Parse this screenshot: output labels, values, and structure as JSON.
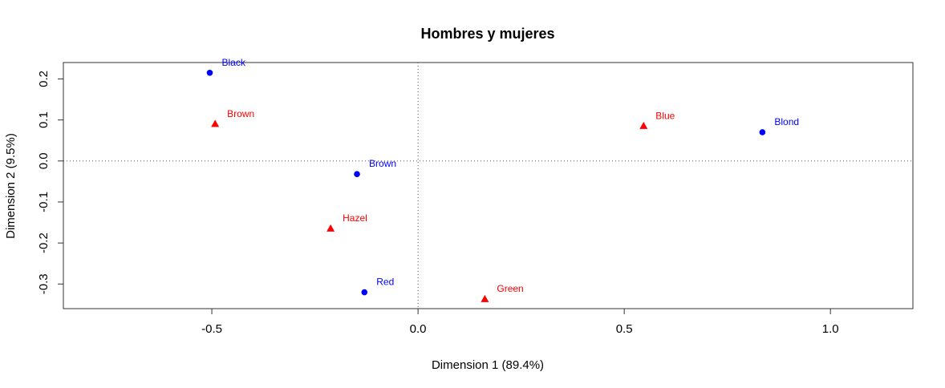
{
  "chart_data": {
    "type": "scatter",
    "title": "Hombres y mujeres",
    "xlabel": "Dimension 1 (89.4%)",
    "ylabel": "Dimension 2 (9.5%)",
    "xlim": [
      -0.86,
      1.2
    ],
    "ylim": [
      -0.36,
      0.24
    ],
    "xticks": [
      -0.5,
      0.0,
      0.5,
      1.0
    ],
    "xtick_labels": [
      "-0.5",
      "0.0",
      "0.5",
      "1.0"
    ],
    "yticks": [
      -0.3,
      -0.2,
      -0.1,
      0.0,
      0.1,
      0.2
    ],
    "ytick_labels": [
      "-0.3",
      "-0.2",
      "-0.1",
      "0.0",
      "0.1",
      "0.2"
    ],
    "reference_lines": {
      "x": 0,
      "y": 0,
      "style": "dotted"
    },
    "grid": false,
    "series": [
      {
        "marker": "circle",
        "color": "#0000ff",
        "points": [
          {
            "label": "Black",
            "x": -0.505,
            "y": 0.215
          },
          {
            "label": "Brown",
            "x": -0.148,
            "y": -0.032
          },
          {
            "label": "Red",
            "x": -0.13,
            "y": -0.32
          },
          {
            "label": "Blond",
            "x": 0.835,
            "y": 0.07
          }
        ]
      },
      {
        "marker": "triangle",
        "color": "#ff0000",
        "points": [
          {
            "label": "Brown",
            "x": -0.492,
            "y": 0.09
          },
          {
            "label": "Hazel",
            "x": -0.212,
            "y": -0.165
          },
          {
            "label": "Green",
            "x": 0.162,
            "y": -0.337
          },
          {
            "label": "Blue",
            "x": 0.547,
            "y": 0.085
          }
        ]
      }
    ]
  }
}
